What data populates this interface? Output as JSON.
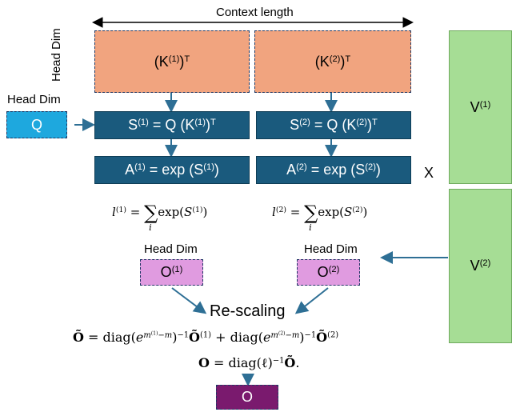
{
  "context_length_label": "Context length",
  "head_dim_label": "Head Dim",
  "k1": {
    "base": "(K",
    "sup": "(1)",
    "close": ")",
    "t": "T"
  },
  "k2": {
    "base": "(K",
    "sup": "(2)",
    "close": ")",
    "t": "T"
  },
  "q_label": "Q",
  "s1": {
    "a": "S",
    "sup": "(1)",
    "b": " = Q (K",
    "sup2": "(1)",
    "c": ")",
    "t": "T"
  },
  "s2": {
    "a": "S",
    "sup": "(2)",
    "b": " = Q (K",
    "sup2": "(2)",
    "c": ")",
    "t": "T"
  },
  "a1": {
    "a": "A",
    "sup": "(1)",
    "b": " = exp (S",
    "sup2": "(1)",
    "c": ")"
  },
  "a2": {
    "a": "A",
    "sup": "(2)",
    "b": " = exp (S",
    "sup2": "(2)",
    "c": ")"
  },
  "times_label": "X",
  "v1": {
    "base": "V",
    "sup": "(1)"
  },
  "v2": {
    "base": "V",
    "sup": "(2)"
  },
  "l1": {
    "lhs": "l",
    "sup": "(1)",
    "eq": " = ",
    "sum": "∑",
    "sub": "i",
    "func": "exp(",
    "arg": "S",
    "argsup": "(1)",
    "close": ")"
  },
  "l2": {
    "lhs": "l",
    "sup": "(2)",
    "eq": " = ",
    "sum": "∑",
    "sub": "i",
    "func": "exp(",
    "arg": "S",
    "argsup": "(2)",
    "close": ")"
  },
  "o1": {
    "base": "O",
    "sup": "(1)"
  },
  "o2": {
    "base": "O",
    "sup": "(2)"
  },
  "rescaling_label": "Re-scaling",
  "formula1": {
    "lhs": "Õ",
    "eq": " = diag(",
    "e1": "e",
    "e1sup": "m",
    "e1supsup": "(1)",
    "e1rest": "−m",
    "close1": ")",
    "inv1": "−1",
    "o1": "Õ",
    "o1sup": "(1)",
    "plus": " + diag(",
    "e2": "e",
    "e2sup": "m",
    "e2supsup": "(2)",
    "e2rest": "−m",
    "close2": ")",
    "inv2": "−1",
    "o2": "Õ",
    "o2sup": "(2)"
  },
  "formula2": {
    "lhs": "O",
    "eq": " = diag(ℓ)",
    "inv": "−1",
    "rhs": "Õ",
    "end": "."
  },
  "o_final_label": "O",
  "colors": {
    "k_fill": "#f1a47f",
    "s_fill": "#1a5a7d",
    "q_fill": "#1ea8de",
    "v_fill": "#a6dd95",
    "o_fill": "#e09be0",
    "o_final_fill": "#7a1a6e",
    "arrow": "#2e6f95"
  }
}
